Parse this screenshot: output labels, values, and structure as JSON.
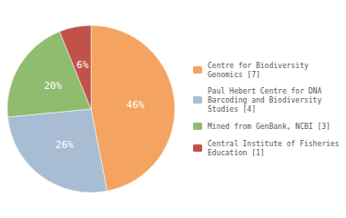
{
  "chart_data": {
    "type": "pie",
    "categories": [
      "Centre for Biodiversity\nGenomics [7]",
      "Paul Hebert Centre for DNA\nBarcoding and Biodiversity\nStudies [4]",
      "Mined from GenBank, NCBI [3]",
      "Central Institute of Fisheries\nEducation [1]"
    ],
    "values": [
      46,
      26,
      20,
      6
    ],
    "value_labels": [
      "46%",
      "26%",
      "20%",
      "6%"
    ],
    "colors": [
      "#F4A460",
      "#A8BDD4",
      "#8FBC6F",
      "#C0524A"
    ],
    "data_labels": true,
    "legend": "right"
  }
}
